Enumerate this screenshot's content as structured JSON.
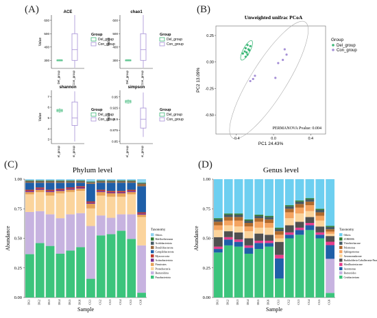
{
  "labels": {
    "A": "(A)",
    "B": "(B)",
    "C": "(C)",
    "D": "(D)"
  },
  "colors": {
    "del": "#3cb878",
    "con": "#a58fd6"
  },
  "chart_data": [
    {
      "type": "box",
      "panel": "A",
      "plots": [
        {
          "title": "ACE",
          "yticks": [
            300,
            400,
            500,
            600
          ],
          "ylim": [
            240,
            640
          ],
          "ylabel": "Value",
          "groups": [
            {
              "name": "Del_group",
              "whisker_low": 300,
              "q1": 301,
              "median": 302,
              "q3": 304,
              "whisker_high": 306
            },
            {
              "name": "Con_group",
              "whisker_low": 245,
              "q1": 300,
              "median": 380,
              "q3": 500,
              "whisker_high": 640
            }
          ]
        },
        {
          "title": "chao1",
          "yticks": [
            300,
            400,
            500,
            600
          ],
          "ylim": [
            240,
            640
          ],
          "ylabel": "Value",
          "groups": [
            {
              "name": "Del_group",
              "whisker_low": 300,
              "q1": 301,
              "median": 302,
              "q3": 304,
              "whisker_high": 306
            },
            {
              "name": "Con_group",
              "whisker_low": 245,
              "q1": 300,
              "median": 380,
              "q3": 500,
              "whisker_high": 640
            }
          ]
        },
        {
          "title": "shannon",
          "yticks": [
            3,
            4,
            5,
            6,
            7
          ],
          "ylim": [
            2.6,
            7.6
          ],
          "ylabel": "Value",
          "groups": [
            {
              "name": "Del_group",
              "whisker_low": 5.5,
              "q1": 5.6,
              "median": 5.7,
              "q3": 5.8,
              "whisker_high": 5.9
            },
            {
              "name": "Con_group",
              "whisker_low": 2.8,
              "q1": 4.3,
              "median": 5.0,
              "q3": 6.5,
              "whisker_high": 7.5
            }
          ]
        },
        {
          "title": "simpson",
          "yticks": [
            0.85,
            0.875,
            0.9,
            0.925,
            0.95
          ],
          "ylim": [
            0.845,
            0.965
          ],
          "ylabel": "Value",
          "groups": [
            {
              "name": "Del_group",
              "whisker_low": 0.935,
              "q1": 0.937,
              "median": 0.94,
              "q3": 0.942,
              "whisker_high": 0.944
            },
            {
              "name": "Con_group",
              "whisker_low": 0.86,
              "q1": 0.88,
              "median": 0.9,
              "q3": 0.925,
              "whisker_high": 0.96
            }
          ]
        }
      ],
      "legend_title": "Group",
      "legend": [
        "Del_group",
        "Con_group"
      ]
    },
    {
      "type": "scatter",
      "panel": "B",
      "title": "Unweighted unifrac PCoA",
      "xlabel": "PC1 24.43%",
      "ylabel": "PC2 13.09%",
      "xticks": [
        -0.4,
        0.0,
        0.4
      ],
      "yticks": [
        0.25,
        0.0,
        -0.25,
        -0.5
      ],
      "xlim": [
        -0.62,
        0.56
      ],
      "ylim": [
        -0.68,
        0.34
      ],
      "annotation": "PERMANOVA Pvalue:   0.004",
      "legend_title": "Group",
      "series": [
        {
          "name": "Del_group",
          "x": [
            -0.33,
            -0.31,
            -0.3,
            -0.29,
            -0.28,
            -0.27,
            -0.26,
            -0.25,
            -0.28,
            -0.3
          ],
          "y": [
            0.08,
            0.1,
            0.13,
            0.09,
            0.07,
            0.12,
            0.11,
            0.15,
            0.16,
            0.05
          ]
        },
        {
          "name": "Con_group",
          "x": [
            0.12,
            0.14,
            0.1,
            0.05,
            -0.2,
            -0.22,
            -0.25,
            0.02
          ],
          "y": [
            0.12,
            0.07,
            0.02,
            -0.01,
            -0.13,
            -0.16,
            -0.18,
            -0.15
          ]
        }
      ]
    },
    {
      "type": "stacked_bar",
      "panel": "C",
      "title": "Phylum level",
      "xlabel": "Sample",
      "ylabel": "Abundance",
      "yticks": [
        "0.00",
        "0.25",
        "0.50",
        "0.75",
        "1.00"
      ],
      "categories": [
        "DG1",
        "DG2",
        "DG3",
        "DG4",
        "DG5",
        "DG6",
        "CG1",
        "CG2",
        "CG3",
        "CG4",
        "CG5",
        "CG6"
      ],
      "legend_title": "Taxonomy",
      "legend": [
        "Others",
        "Bdellovibrionota",
        "Acidobacteriota",
        "Desulfobacterota",
        "Campilobacterota",
        "Myxococcota",
        "Actinobacteriota",
        "Firmicutes",
        "Proteobacteria",
        "Bacteroidota",
        "Fusobacteriota"
      ],
      "series": [
        {
          "name": "Fusobacteriota",
          "values": [
            0.37,
            0.46,
            0.44,
            0.37,
            0.4,
            0.43,
            0.16,
            0.53,
            0.54,
            0.57,
            0.5,
            0.04
          ]
        },
        {
          "name": "Bacteroidota",
          "values": [
            0.36,
            0.27,
            0.27,
            0.3,
            0.31,
            0.29,
            0.45,
            0.17,
            0.14,
            0.14,
            0.21,
            0.4
          ]
        },
        {
          "name": "Proteobacteria",
          "values": [
            0.15,
            0.16,
            0.16,
            0.21,
            0.19,
            0.19,
            0.15,
            0.17,
            0.18,
            0.15,
            0.17,
            0.24
          ]
        },
        {
          "name": "Firmicutes",
          "values": [
            0.02,
            0.02,
            0.03,
            0.02,
            0.02,
            0.02,
            0.04,
            0.03,
            0.03,
            0.03,
            0.02,
            0.02
          ]
        },
        {
          "name": "Actinobacteriota",
          "values": [
            0.01,
            0.01,
            0.01,
            0.01,
            0.01,
            0.01,
            0.01,
            0.01,
            0.01,
            0.01,
            0.01,
            0.01
          ]
        },
        {
          "name": "Myxococcota",
          "values": [
            0.01,
            0.01,
            0.01,
            0.01,
            0.01,
            0.01,
            0.01,
            0.01,
            0.01,
            0.01,
            0.01,
            0.01
          ]
        },
        {
          "name": "Campilobacterota",
          "values": [
            0.06,
            0.04,
            0.06,
            0.05,
            0.04,
            0.03,
            0.15,
            0.06,
            0.07,
            0.07,
            0.06,
            0.22
          ]
        },
        {
          "name": "Desulfobacterota",
          "values": [
            0.01,
            0.01,
            0.01,
            0.01,
            0.01,
            0.01,
            0.01,
            0.01,
            0.01,
            0.01,
            0.01,
            0.02
          ]
        },
        {
          "name": "Acidobacteriota",
          "values": [
            0.005,
            0.005,
            0.005,
            0.005,
            0.005,
            0.005,
            0.005,
            0.005,
            0.005,
            0.005,
            0.005,
            0.005
          ]
        },
        {
          "name": "Bdellovibrionota",
          "values": [
            0.005,
            0.005,
            0.005,
            0.005,
            0.005,
            0.005,
            0.005,
            0.005,
            0.005,
            0.005,
            0.005,
            0.005
          ]
        },
        {
          "name": "Others",
          "values": [
            0.01,
            0.01,
            0.01,
            0.01,
            0.01,
            0.01,
            0.02,
            0.01,
            0.01,
            0.01,
            0.01,
            0.03
          ]
        }
      ]
    },
    {
      "type": "stacked_bar",
      "panel": "D",
      "title": "Genus level",
      "xlabel": "Sample",
      "ylabel": "Abundance",
      "yticks": [
        "0.00",
        "0.25",
        "0.50",
        "0.75",
        "1.00"
      ],
      "categories": [
        "DG1",
        "DG2",
        "DG3",
        "DG4",
        "DG5",
        "DG6",
        "CG1",
        "CG2",
        "CG3",
        "CG4",
        "CG5",
        "CG6"
      ],
      "legend_title": "Taxonomy",
      "legend": [
        "Others",
        "ZOR0006",
        "Thiothrichaceae",
        "Pelomonas",
        "Sphingomonas",
        "Aeromonadaceae",
        "Burkholderia-Caballeronia-Paraburkholderia",
        "Morilbacteriaceae",
        "Aeromonas",
        "Bacteroides",
        "Cetobacterium"
      ],
      "series": [
        {
          "name": "Cetobacterium",
          "values": [
            0.38,
            0.44,
            0.43,
            0.37,
            0.41,
            0.43,
            0.16,
            0.5,
            0.53,
            0.57,
            0.5,
            0.04
          ]
        },
        {
          "name": "Bacteroides",
          "values": [
            0.0,
            0.0,
            0.0,
            0.0,
            0.0,
            0.0,
            0.0,
            0.0,
            0.0,
            0.0,
            0.0,
            0.3
          ]
        },
        {
          "name": "Aeromonas",
          "values": [
            0.03,
            0.05,
            0.04,
            0.05,
            0.05,
            0.03,
            0.17,
            0.03,
            0.04,
            0.04,
            0.03,
            0.12
          ]
        },
        {
          "name": "Morilbacteriaceae",
          "values": [
            0.02,
            0.02,
            0.02,
            0.02,
            0.02,
            0.02,
            0.03,
            0.02,
            0.02,
            0.02,
            0.02,
            0.03
          ]
        },
        {
          "name": "Burkholderia-Caballeronia-Paraburkholderia",
          "values": [
            0.08,
            0.05,
            0.06,
            0.06,
            0.06,
            0.05,
            0.11,
            0.06,
            0.05,
            0.05,
            0.05,
            0.05
          ]
        },
        {
          "name": "Aeromonadaceae",
          "values": [
            0.06,
            0.05,
            0.05,
            0.06,
            0.05,
            0.06,
            0.03,
            0.06,
            0.07,
            0.05,
            0.05,
            0.02
          ]
        },
        {
          "name": "Sphingomonas",
          "values": [
            0.04,
            0.04,
            0.05,
            0.04,
            0.05,
            0.04,
            0.03,
            0.05,
            0.05,
            0.05,
            0.04,
            0.02
          ]
        },
        {
          "name": "Pelomonas",
          "values": [
            0.03,
            0.03,
            0.03,
            0.03,
            0.03,
            0.03,
            0.03,
            0.03,
            0.03,
            0.03,
            0.03,
            0.02
          ]
        },
        {
          "name": "Thiothrichaceae",
          "values": [
            0.02,
            0.02,
            0.02,
            0.02,
            0.02,
            0.02,
            0.02,
            0.02,
            0.02,
            0.02,
            0.02,
            0.02
          ]
        },
        {
          "name": "ZOR0006",
          "values": [
            0.01,
            0.01,
            0.01,
            0.01,
            0.01,
            0.01,
            0.01,
            0.01,
            0.01,
            0.01,
            0.01,
            0.01
          ]
        },
        {
          "name": "Others",
          "values": [
            0.33,
            0.29,
            0.29,
            0.34,
            0.3,
            0.31,
            0.41,
            0.22,
            0.18,
            0.16,
            0.25,
            0.41
          ]
        }
      ]
    }
  ]
}
